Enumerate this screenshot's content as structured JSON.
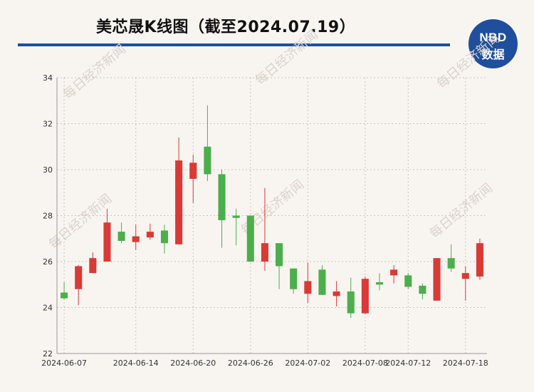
{
  "title": "美芯晟K线图（截至2024.07.19）",
  "logo": {
    "top": "NBD",
    "bottom": "数据",
    "color": "#1f4e9c"
  },
  "watermark": "每日经济新闻",
  "colors": {
    "up": "#d93a36",
    "down": "#4cae4c",
    "rule": "#1f4e9c"
  },
  "chart_data": {
    "type": "candlestick",
    "title": "美芯晟K线图（截至2024.07.19）",
    "xlabel": "",
    "ylabel": "",
    "ylim": [
      22,
      34
    ],
    "yticks": [
      22,
      24,
      26,
      28,
      30,
      32,
      34
    ],
    "xtick_labels": [
      "2024-06-07",
      "2024-06-14",
      "2024-06-20",
      "2024-06-26",
      "2024-07-02",
      "2024-07-08",
      "2024-07-12",
      "2024-07-18"
    ],
    "xtick_positions": [
      0,
      5,
      9,
      13,
      17,
      21,
      24,
      28
    ],
    "grid": true,
    "candles": [
      {
        "open": 24.65,
        "close": 24.4,
        "high": 25.1,
        "low": 24.35
      },
      {
        "open": 24.8,
        "close": 25.8,
        "high": 25.85,
        "low": 24.1
      },
      {
        "open": 25.5,
        "close": 26.15,
        "high": 26.4,
        "low": 25.5
      },
      {
        "open": 26.0,
        "close": 27.7,
        "high": 28.3,
        "low": 26.0
      },
      {
        "open": 27.3,
        "close": 26.9,
        "high": 27.7,
        "low": 26.8
      },
      {
        "open": 26.85,
        "close": 27.1,
        "high": 27.6,
        "low": 26.5
      },
      {
        "open": 27.05,
        "close": 27.3,
        "high": 27.65,
        "low": 26.95
      },
      {
        "open": 27.35,
        "close": 26.8,
        "high": 27.6,
        "low": 26.35
      },
      {
        "open": 26.75,
        "close": 30.4,
        "high": 31.4,
        "low": 26.75
      },
      {
        "open": 29.6,
        "close": 30.3,
        "high": 30.65,
        "low": 28.55
      },
      {
        "open": 31.0,
        "close": 29.8,
        "high": 32.8,
        "low": 29.5
      },
      {
        "open": 29.8,
        "close": 27.8,
        "high": 30.0,
        "low": 26.6
      },
      {
        "open": 28.0,
        "close": 27.9,
        "high": 28.3,
        "low": 26.7
      },
      {
        "open": 28.0,
        "close": 26.0,
        "high": 28.0,
        "low": 26.0
      },
      {
        "open": 26.0,
        "close": 26.8,
        "high": 29.2,
        "low": 25.6
      },
      {
        "open": 26.8,
        "close": 25.8,
        "high": 26.8,
        "low": 24.8
      },
      {
        "open": 25.7,
        "close": 24.8,
        "high": 25.7,
        "low": 24.6
      },
      {
        "open": 24.6,
        "close": 25.15,
        "high": 25.95,
        "low": 24.2
      },
      {
        "open": 25.65,
        "close": 24.55,
        "high": 25.85,
        "low": 24.55
      },
      {
        "open": 24.5,
        "close": 24.7,
        "high": 25.15,
        "low": 24.05
      },
      {
        "open": 24.7,
        "close": 23.75,
        "high": 25.3,
        "low": 23.55
      },
      {
        "open": 23.75,
        "close": 25.25,
        "high": 25.35,
        "low": 23.7
      },
      {
        "open": 25.1,
        "close": 25.0,
        "high": 25.5,
        "low": 24.75
      },
      {
        "open": 25.4,
        "close": 25.65,
        "high": 25.85,
        "low": 25.05
      },
      {
        "open": 25.4,
        "close": 24.9,
        "high": 25.5,
        "low": 24.8
      },
      {
        "open": 24.95,
        "close": 24.6,
        "high": 25.05,
        "low": 24.35
      },
      {
        "open": 24.3,
        "close": 26.15,
        "high": 26.15,
        "low": 24.3
      },
      {
        "open": 26.15,
        "close": 25.7,
        "high": 26.75,
        "low": 25.55
      },
      {
        "open": 25.25,
        "close": 25.5,
        "high": 25.8,
        "low": 24.3
      },
      {
        "open": 25.35,
        "close": 26.8,
        "high": 27.0,
        "low": 25.2
      }
    ]
  }
}
